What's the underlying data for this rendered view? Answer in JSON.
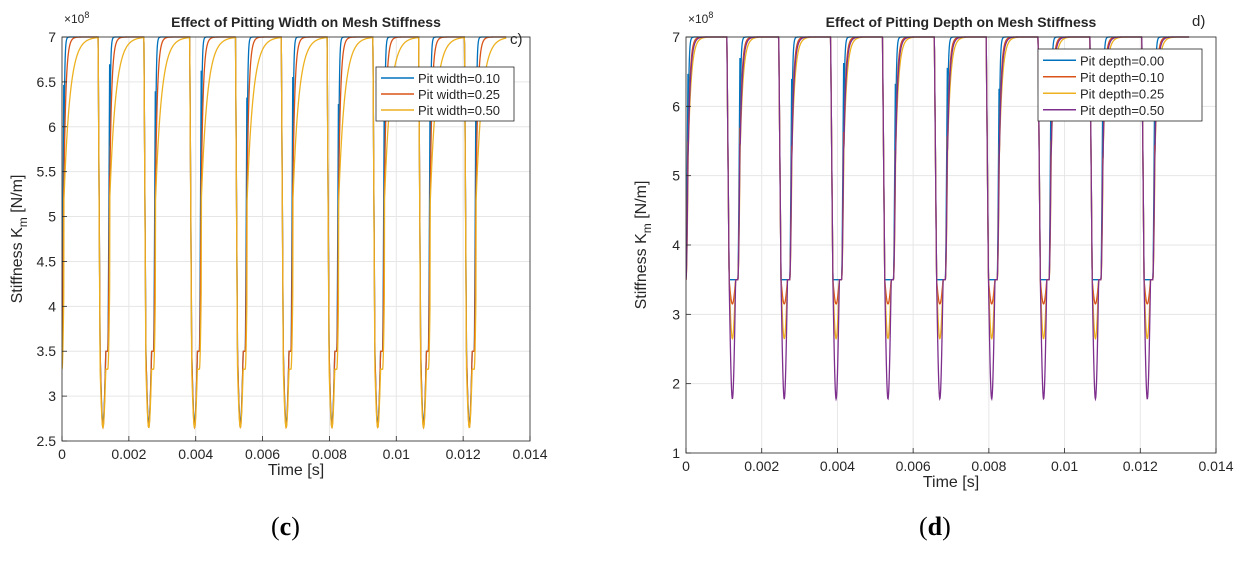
{
  "chart_data": [
    {
      "type": "line",
      "title": "Effect of Pitting Width on Mesh Stiffness",
      "panel_tag": "c)",
      "caption_letter": "c",
      "xlabel": "Time [s]",
      "ylabel_main": "Stiffness  K",
      "ylabel_sub": "m",
      "ylabel_unit": "  [N/m]",
      "exponent_base": "×10",
      "exponent_power": "8",
      "xlim": [
        0,
        0.014
      ],
      "ylim": [
        2.5,
        7.0
      ],
      "x_ticks": [
        0,
        0.002,
        0.004,
        0.006,
        0.008,
        0.01,
        0.012,
        0.014
      ],
      "x_tick_labels": [
        "0",
        "0.002",
        "0.004",
        "0.006",
        "0.008",
        "0.01",
        "0.012",
        "0.014"
      ],
      "y_ticks": [
        2.5,
        3,
        3.5,
        4,
        4.5,
        5,
        5.5,
        6,
        6.5,
        7
      ],
      "y_tick_labels": [
        "2.5",
        "3",
        "3.5",
        "4",
        "4.5",
        "5",
        "5.5",
        "6",
        "6.5",
        "7"
      ],
      "grid": true,
      "legend_position": "top-right",
      "period": 0.00137,
      "cycles": 9.7,
      "series": [
        {
          "name": "Pit width=0.10",
          "color": "#0072BD",
          "low": 3.5,
          "high": 7.0,
          "dip_min": 2.7,
          "rise_tau": 2e-05
        },
        {
          "name": "Pit width=0.25",
          "color": "#D95319",
          "low": 3.5,
          "high": 7.0,
          "dip_min": 2.65,
          "rise_tau": 6e-05
        },
        {
          "name": "Pit width=0.50",
          "color": "#EDB120",
          "low": 3.3,
          "high": 7.0,
          "dip_min": 2.65,
          "rise_tau": 0.00018
        }
      ]
    },
    {
      "type": "line",
      "title": "Effect of Pitting Depth on Mesh Stiffness",
      "panel_tag": "d)",
      "caption_letter": "d",
      "xlabel": "Time [s]",
      "ylabel_main": "Stiffness  K",
      "ylabel_sub": "m",
      "ylabel_unit": "  [N/m]",
      "exponent_base": "×10",
      "exponent_power": "8",
      "xlim": [
        0,
        0.014
      ],
      "ylim": [
        1,
        7
      ],
      "x_ticks": [
        0,
        0.002,
        0.004,
        0.006,
        0.008,
        0.01,
        0.012,
        0.014
      ],
      "x_tick_labels": [
        "0",
        "0.002",
        "0.004",
        "0.006",
        "0.008",
        "0.01",
        "0.012",
        "0.014"
      ],
      "y_ticks": [
        1,
        2,
        3,
        4,
        5,
        6,
        7
      ],
      "y_tick_labels": [
        "1",
        "2",
        "3",
        "4",
        "5",
        "6",
        "7"
      ],
      "grid": true,
      "legend_position": "top-right",
      "period": 0.00137,
      "cycles": 9.7,
      "series": [
        {
          "name": "Pit depth=0.00",
          "color": "#0072BD",
          "low": 3.5,
          "high": 7.0,
          "dip_min": 3.5,
          "rise_tau": 2e-05
        },
        {
          "name": "Pit depth=0.10",
          "color": "#D95319",
          "low": 3.5,
          "high": 7.0,
          "dip_min": 3.15,
          "rise_tau": 5e-05
        },
        {
          "name": "Pit depth=0.25",
          "color": "#EDB120",
          "low": 3.5,
          "high": 7.0,
          "dip_min": 2.65,
          "rise_tau": 8e-05
        },
        {
          "name": "Pit depth=0.50",
          "color": "#7E2F8E",
          "low": 3.5,
          "high": 7.0,
          "dip_min": 1.78,
          "rise_tau": 6e-05
        }
      ]
    }
  ]
}
